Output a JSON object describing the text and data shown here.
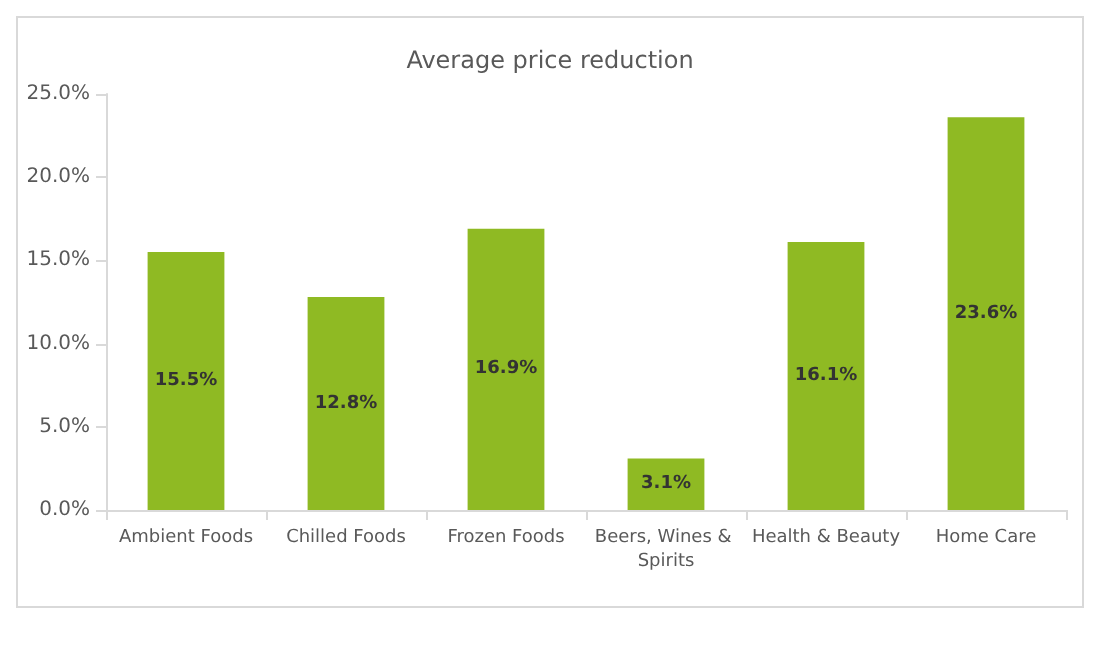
{
  "chart_data": {
    "type": "bar",
    "title": "Average price reduction",
    "categories": [
      "Ambient Foods",
      "Chilled Foods",
      "Frozen Foods",
      "Beers, Wines & Spirits",
      "Health & Beauty",
      "Home Care"
    ],
    "values": [
      15.5,
      12.8,
      16.9,
      3.1,
      16.1,
      23.6
    ],
    "value_labels": [
      "15.5%",
      "12.8%",
      "16.9%",
      "3.1%",
      "16.1%",
      "23.6%"
    ],
    "color": "#8fba23",
    "ylim": [
      0,
      25
    ],
    "yticks": [
      {
        "value": 0,
        "label": "0.0%"
      },
      {
        "value": 5,
        "label": "5.0%"
      },
      {
        "value": 10,
        "label": "10.0%"
      },
      {
        "value": 15,
        "label": "15.0%"
      },
      {
        "value": 20,
        "label": "20.0%"
      },
      {
        "value": 25,
        "label": "25.0%"
      }
    ],
    "grid": false
  }
}
